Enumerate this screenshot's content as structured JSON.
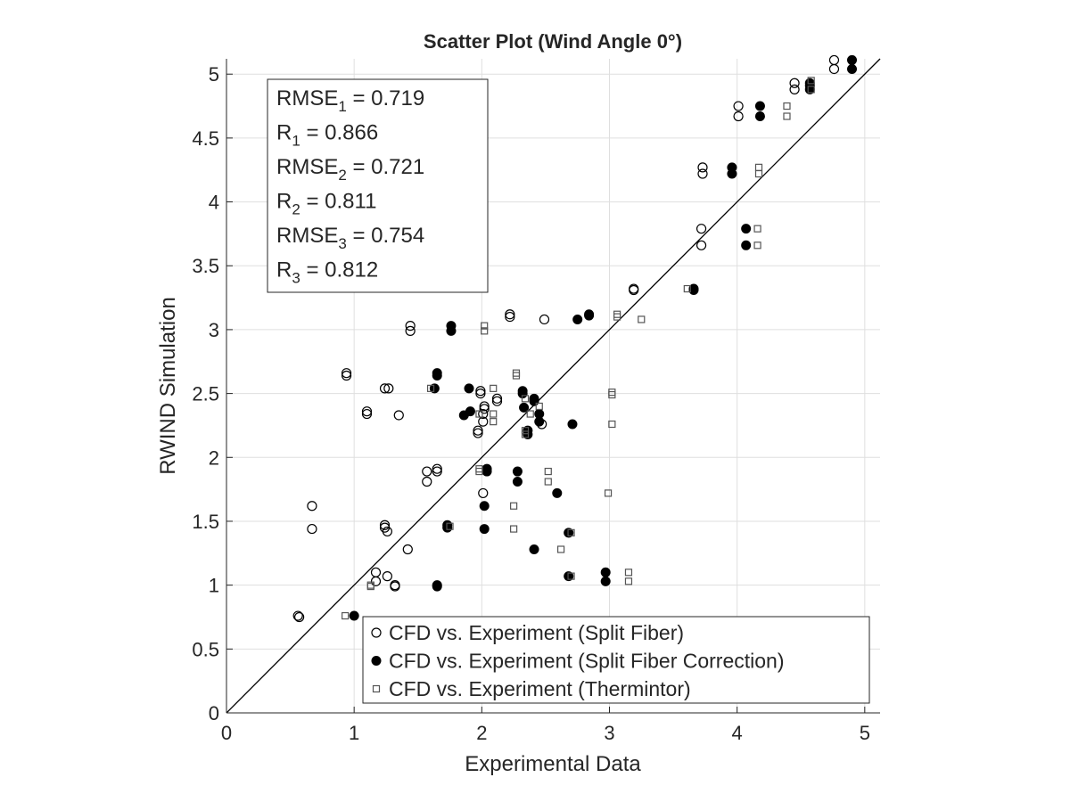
{
  "chart_data": {
    "type": "scatter",
    "title": "Scatter Plot (Wind Angle 0°)",
    "xlabel": "Experimental Data",
    "ylabel": "RWIND Simulation",
    "xlim": [
      0,
      5.12
    ],
    "ylim": [
      0,
      5.12
    ],
    "xticks": [
      "0",
      "1",
      "2",
      "3",
      "4",
      "5"
    ],
    "yticks": [
      "0",
      "0.5",
      "1",
      "1.5",
      "2",
      "2.5",
      "3",
      "3.5",
      "4",
      "4.5",
      "5"
    ],
    "grid": true,
    "reference_line": "y = x",
    "legend_position": "bottom-right",
    "stats": [
      {
        "label": "RMSE",
        "sub": "1",
        "value": "0.719"
      },
      {
        "label": "R",
        "sub": "1",
        "value": "0.866"
      },
      {
        "label": "RMSE",
        "sub": "2",
        "value": "0.721"
      },
      {
        "label": "R",
        "sub": "2",
        "value": "0.811"
      },
      {
        "label": "RMSE",
        "sub": "3",
        "value": "0.754"
      },
      {
        "label": "R",
        "sub": "3",
        "value": "0.812"
      }
    ],
    "series": [
      {
        "name": "CFD vs. Experiment (Split Fiber)",
        "marker": "open-circle",
        "color": "#000000",
        "points": [
          [
            0.56,
            0.76
          ],
          [
            0.57,
            0.75
          ],
          [
            0.67,
            1.62
          ],
          [
            0.67,
            1.44
          ],
          [
            0.94,
            2.66
          ],
          [
            0.94,
            2.64
          ],
          [
            1.1,
            2.36
          ],
          [
            1.1,
            2.34
          ],
          [
            1.24,
            2.54
          ],
          [
            1.27,
            2.54
          ],
          [
            1.35,
            2.33
          ],
          [
            1.17,
            1.1
          ],
          [
            1.17,
            1.03
          ],
          [
            1.26,
            1.07
          ],
          [
            1.32,
            1.0
          ],
          [
            1.32,
            0.99
          ],
          [
            1.24,
            1.47
          ],
          [
            1.24,
            1.45
          ],
          [
            1.26,
            1.42
          ],
          [
            1.42,
            1.28
          ],
          [
            1.44,
            3.03
          ],
          [
            1.44,
            2.99
          ],
          [
            1.57,
            1.89
          ],
          [
            1.57,
            1.81
          ],
          [
            1.65,
            1.91
          ],
          [
            1.65,
            1.89
          ],
          [
            1.99,
            2.52
          ],
          [
            1.99,
            2.5
          ],
          [
            2.02,
            2.4
          ],
          [
            2.02,
            2.38
          ],
          [
            2.01,
            2.34
          ],
          [
            2.01,
            2.28
          ],
          [
            1.97,
            2.21
          ],
          [
            1.97,
            2.19
          ],
          [
            2.01,
            1.72
          ],
          [
            2.12,
            2.46
          ],
          [
            2.12,
            2.44
          ],
          [
            2.22,
            3.12
          ],
          [
            2.22,
            3.1
          ],
          [
            2.47,
            2.26
          ],
          [
            2.49,
            3.08
          ],
          [
            3.19,
            3.32
          ],
          [
            3.19,
            3.31
          ],
          [
            3.72,
            3.79
          ],
          [
            3.72,
            3.66
          ],
          [
            3.73,
            4.27
          ],
          [
            3.73,
            4.22
          ],
          [
            4.01,
            4.75
          ],
          [
            4.01,
            4.67
          ],
          [
            4.45,
            4.93
          ],
          [
            4.45,
            4.88
          ],
          [
            4.76,
            5.11
          ],
          [
            4.76,
            5.04
          ]
        ]
      },
      {
        "name": "CFD vs. Experiment (Split Fiber Correction)",
        "marker": "filled-circle",
        "color": "#000000",
        "points": [
          [
            1.0,
            0.76
          ],
          [
            1.65,
            1.0
          ],
          [
            1.65,
            0.99
          ],
          [
            1.73,
            1.47
          ],
          [
            1.73,
            1.45
          ],
          [
            1.63,
            2.54
          ],
          [
            1.65,
            2.66
          ],
          [
            1.65,
            2.64
          ],
          [
            1.76,
            3.03
          ],
          [
            1.76,
            2.99
          ],
          [
            1.86,
            2.33
          ],
          [
            1.91,
            2.36
          ],
          [
            1.9,
            2.54
          ],
          [
            2.02,
            1.62
          ],
          [
            2.02,
            1.44
          ],
          [
            2.04,
            1.91
          ],
          [
            2.04,
            1.89
          ],
          [
            2.28,
            1.89
          ],
          [
            2.28,
            1.81
          ],
          [
            2.32,
            2.52
          ],
          [
            2.32,
            2.5
          ],
          [
            2.33,
            2.39
          ],
          [
            2.36,
            2.21
          ],
          [
            2.36,
            2.18
          ],
          [
            2.41,
            2.46
          ],
          [
            2.41,
            2.44
          ],
          [
            2.41,
            1.28
          ],
          [
            2.45,
            2.34
          ],
          [
            2.45,
            2.28
          ],
          [
            2.59,
            1.72
          ],
          [
            2.68,
            1.41
          ],
          [
            2.68,
            1.07
          ],
          [
            2.71,
            2.26
          ],
          [
            2.75,
            3.08
          ],
          [
            2.84,
            3.12
          ],
          [
            2.84,
            3.11
          ],
          [
            2.97,
            1.1
          ],
          [
            2.97,
            1.03
          ],
          [
            3.66,
            3.32
          ],
          [
            3.66,
            3.31
          ],
          [
            3.96,
            4.27
          ],
          [
            3.96,
            4.22
          ],
          [
            4.07,
            3.79
          ],
          [
            4.07,
            3.66
          ],
          [
            4.18,
            4.75
          ],
          [
            4.18,
            4.67
          ],
          [
            4.57,
            4.93
          ],
          [
            4.57,
            4.91
          ],
          [
            4.57,
            4.88
          ],
          [
            4.9,
            5.11
          ],
          [
            4.9,
            5.04
          ]
        ]
      },
      {
        "name": "CFD vs. Experiment (Thermintor)",
        "marker": "open-square",
        "color": "#555555",
        "points": [
          [
            0.93,
            0.76
          ],
          [
            1.13,
            1.0
          ],
          [
            1.13,
            0.99
          ],
          [
            1.6,
            2.54
          ],
          [
            1.75,
            1.46
          ],
          [
            1.98,
            2.34
          ],
          [
            1.98,
            1.91
          ],
          [
            1.98,
            1.89
          ],
          [
            2.02,
            3.03
          ],
          [
            2.02,
            2.99
          ],
          [
            2.09,
            2.54
          ],
          [
            2.09,
            2.34
          ],
          [
            2.09,
            2.28
          ],
          [
            2.25,
            1.62
          ],
          [
            2.25,
            1.44
          ],
          [
            2.27,
            2.66
          ],
          [
            2.27,
            2.64
          ],
          [
            2.34,
            2.46
          ],
          [
            2.34,
            2.21
          ],
          [
            2.34,
            2.18
          ],
          [
            2.38,
            2.34
          ],
          [
            2.45,
            2.4
          ],
          [
            2.52,
            1.89
          ],
          [
            2.52,
            1.81
          ],
          [
            2.62,
            1.28
          ],
          [
            2.7,
            1.41
          ],
          [
            2.7,
            1.07
          ],
          [
            2.99,
            1.72
          ],
          [
            3.02,
            2.51
          ],
          [
            3.02,
            2.49
          ],
          [
            3.02,
            2.26
          ],
          [
            3.06,
            3.12
          ],
          [
            3.06,
            3.1
          ],
          [
            3.15,
            1.1
          ],
          [
            3.15,
            1.03
          ],
          [
            3.25,
            3.08
          ],
          [
            3.61,
            3.32
          ],
          [
            4.16,
            3.79
          ],
          [
            4.16,
            3.66
          ],
          [
            4.17,
            4.27
          ],
          [
            4.17,
            4.22
          ],
          [
            4.39,
            4.75
          ],
          [
            4.39,
            4.67
          ],
          [
            4.58,
            4.95
          ],
          [
            4.58,
            4.88
          ]
        ]
      }
    ]
  }
}
